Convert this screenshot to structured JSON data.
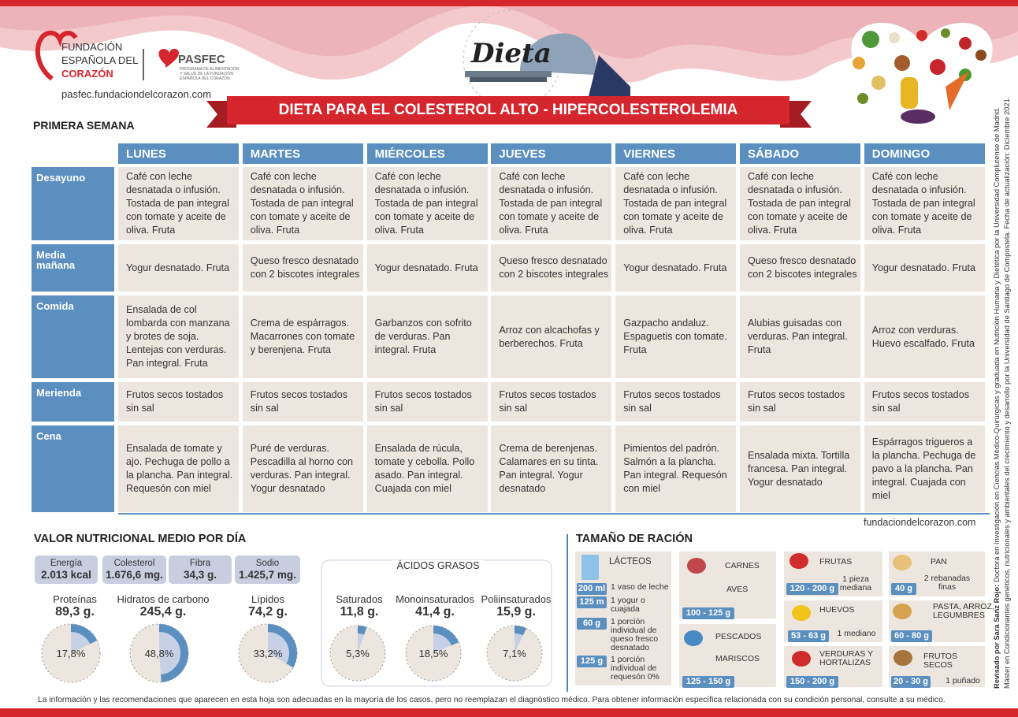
{
  "header": {
    "org": [
      "FUNDACIÓN",
      "ESPAÑOLA DEL",
      "CORAZÓN"
    ],
    "pasfec": "PASFEC",
    "pasfec_sub": "PROGRAMA DE ALIMENTACIÓN Y SALUD DE LA FUNDACIÓN ESPAÑOLA DEL CORAZÓN",
    "url": "pasfec.fundaciondelcorazon.com",
    "dieta": "Dieta",
    "title": "DIETA PARA EL COLESTEROL ALTO - HIPERCOLESTEROLEMIA"
  },
  "week": "PRIMERA SEMANA",
  "table": {
    "days": [
      "LUNES",
      "MARTES",
      "MIÉRCOLES",
      "JUEVES",
      "VIERNES",
      "SÁBADO",
      "DOMINGO"
    ],
    "rows": [
      {
        "meal": "Desayuno",
        "cells": [
          "Café con leche desnatada o infusión. Tostada de pan integral con tomate y aceite de oliva. Fruta",
          "Café con leche desnatada o infusión. Tostada de pan integral con tomate y aceite de oliva. Fruta",
          "Café con leche desnatada o infusión. Tostada de pan integral con tomate y aceite de oliva. Fruta",
          "Café con leche desnatada o infusión. Tostada de pan integral con tomate y aceite de oliva. Fruta",
          "Café con leche desnatada o infusión. Tostada de pan integral con tomate y aceite de oliva. Fruta",
          "Café con leche desnatada o infusión. Tostada de pan integral con tomate y aceite de oliva. Fruta",
          "Café con leche desnatada o infusión. Tostada de pan integral con tomate y aceite de oliva. Fruta"
        ]
      },
      {
        "meal": "Media mañana",
        "cells": [
          "Yogur desnatado. Fruta",
          "Queso fresco desnatado con 2 biscotes integrales",
          "Yogur desnatado. Fruta",
          "Queso fresco desnatado con 2 biscotes integrales",
          "Yogur desnatado. Fruta",
          "Queso fresco desnatado con 2 biscotes integrales",
          "Yogur desnatado. Fruta"
        ]
      },
      {
        "meal": "Comida",
        "cells": [
          "Ensalada de col lombarda con manzana y brotes de soja. Lentejas con verduras. Pan integral. Fruta",
          "Crema de espárragos. Macarrones con tomate y berenjena. Fruta",
          "Garbanzos con sofrito de verduras. Pan integral. Fruta",
          "Arroz con alcachofas y berberechos. Fruta",
          "Gazpacho andaluz. Espaguetis con tomate. Fruta",
          "Alubias guisadas con verduras. Pan integral. Fruta",
          "Arroz con verduras. Huevo escalfado. Fruta"
        ]
      },
      {
        "meal": "Merienda",
        "cells": [
          "Frutos secos tostados sin sal",
          "Frutos secos tostados sin sal",
          "Frutos secos tostados sin sal",
          "Frutos secos tostados sin sal",
          "Frutos secos tostados sin sal",
          "Frutos secos tostados sin sal",
          "Frutos secos tostados sin sal"
        ]
      },
      {
        "meal": "Cena",
        "cells": [
          "Ensalada de tomate y ajo. Pechuga de pollo a la plancha. Pan integral. Requesón con miel",
          "Puré de verduras. Pescadilla al horno con verduras. Pan integral. Yogur desnatado",
          "Ensalada de rúcula, tomate y cebolla. Pollo asado. Pan integral. Cuajada con miel",
          "Crema de berenjenas. Calamares en su tinta. Pan integral. Yogur desnatado",
          "Pimientos del padrón. Salmón a la plancha. Pan integral. Requesón con miel",
          "Ensalada mixta. Tortilla francesa. Pan integral. Yogur desnatado",
          "Espárragos trigueros a la plancha. Pechuga de pavo a la plancha. Pan integral. Cuajada con miel"
        ]
      }
    ]
  },
  "site": "fundaciondelcorazon.com",
  "nutrition": {
    "title": "VALOR NUTRICIONAL MEDIO POR DÍA",
    "stats": [
      {
        "label": "Energía",
        "value": "2.013 kcal"
      },
      {
        "label": "Colesterol",
        "value": "1.676,6 mg."
      },
      {
        "label": "Fibra",
        "value": "34,3 g."
      },
      {
        "label": "Sodio",
        "value": "1.425,7 mg."
      }
    ],
    "macros": [
      {
        "name": "Proteínas",
        "value": "89,3 g.",
        "percent": {
          "value": 17.8,
          "label": "17,8%"
        }
      },
      {
        "name": "Hidratos de carbono",
        "value": "245,4 g.",
        "percent": {
          "value": 48.8,
          "label": "48,8%"
        }
      },
      {
        "name": "Lípidos",
        "value": "74,2 g.",
        "percent": {
          "value": 33.2,
          "label": "33,2%"
        }
      }
    ],
    "fatty_title": "ÁCIDOS GRASOS",
    "fatty": [
      {
        "name": "Saturados",
        "value": "11,8 g.",
        "percent": {
          "value": 5.3,
          "label": "5,3%"
        }
      },
      {
        "name": "Monoinsaturados",
        "value": "41,4 g.",
        "percent": {
          "value": 18.5,
          "label": "18,5%"
        }
      },
      {
        "name": "Poliinsaturados",
        "value": "15,9 g.",
        "percent": {
          "value": 7.1,
          "label": "7,1%"
        }
      }
    ]
  },
  "portions": {
    "title": "TAMAÑO DE RACIÓN",
    "lacteos": {
      "name": "LÁCTEOS",
      "items": [
        {
          "amount": "200 ml",
          "desc": "1 vaso de leche"
        },
        {
          "amount": "125 m",
          "desc": "1 yogur o cuajada"
        },
        {
          "amount": "60 g",
          "desc": "1 porción individual de queso fresco desnatado"
        },
        {
          "amount": "125 g",
          "desc": "1 porción individual de requesón 0%"
        }
      ]
    },
    "groups": [
      {
        "names": [
          "CARNES",
          "AVES"
        ],
        "amount": "100 - 125 g"
      },
      {
        "names": [
          "PESCADOS",
          "MARISCOS"
        ],
        "amount": "125 - 150 g"
      },
      {
        "names": [
          "FRUTAS"
        ],
        "amount": "120 - 200 g",
        "desc": "1 pieza mediana"
      },
      {
        "names": [
          "HUEVOS"
        ],
        "amount": "53 - 63 g",
        "desc": "1 mediano"
      },
      {
        "names": [
          "VERDURAS Y HORTALIZAS"
        ],
        "amount": "150 - 200 g"
      },
      {
        "names": [
          "PAN"
        ],
        "amount": "40 g",
        "desc": "2 rebanadas finas"
      },
      {
        "names": [
          "PASTA, ARROZ, LEGUMBRES"
        ],
        "amount": "60 - 80 g"
      },
      {
        "names": [
          "FRUTOS SECOS"
        ],
        "amount": "20 - 30 g",
        "desc": "1 puñado"
      }
    ]
  },
  "side": {
    "reviewer": "Revisado por Sara Sanz Rojo:",
    "reviewer_text": "Doctora en Investigación en Ciencias Médico-Quirúrgicas y graduada en Nutrición Humana y Dietética por la Universidad Complutense de Madrid.",
    "line2": "Máster en Condicionantes genéticos, nutricionales y ambientales del crecimiento y desarrollo por la Universidad de Santiago de Compostela. Fecha de actualización: Diciembre 2021."
  },
  "footer": "La información y las recomendaciones que aparecen en esta hoja son adecuadas en la mayoría de los casos, pero no reemplazan el diagnóstico médico. Para obtener información específica relacionada con su condición personal, consulte a su médico."
}
